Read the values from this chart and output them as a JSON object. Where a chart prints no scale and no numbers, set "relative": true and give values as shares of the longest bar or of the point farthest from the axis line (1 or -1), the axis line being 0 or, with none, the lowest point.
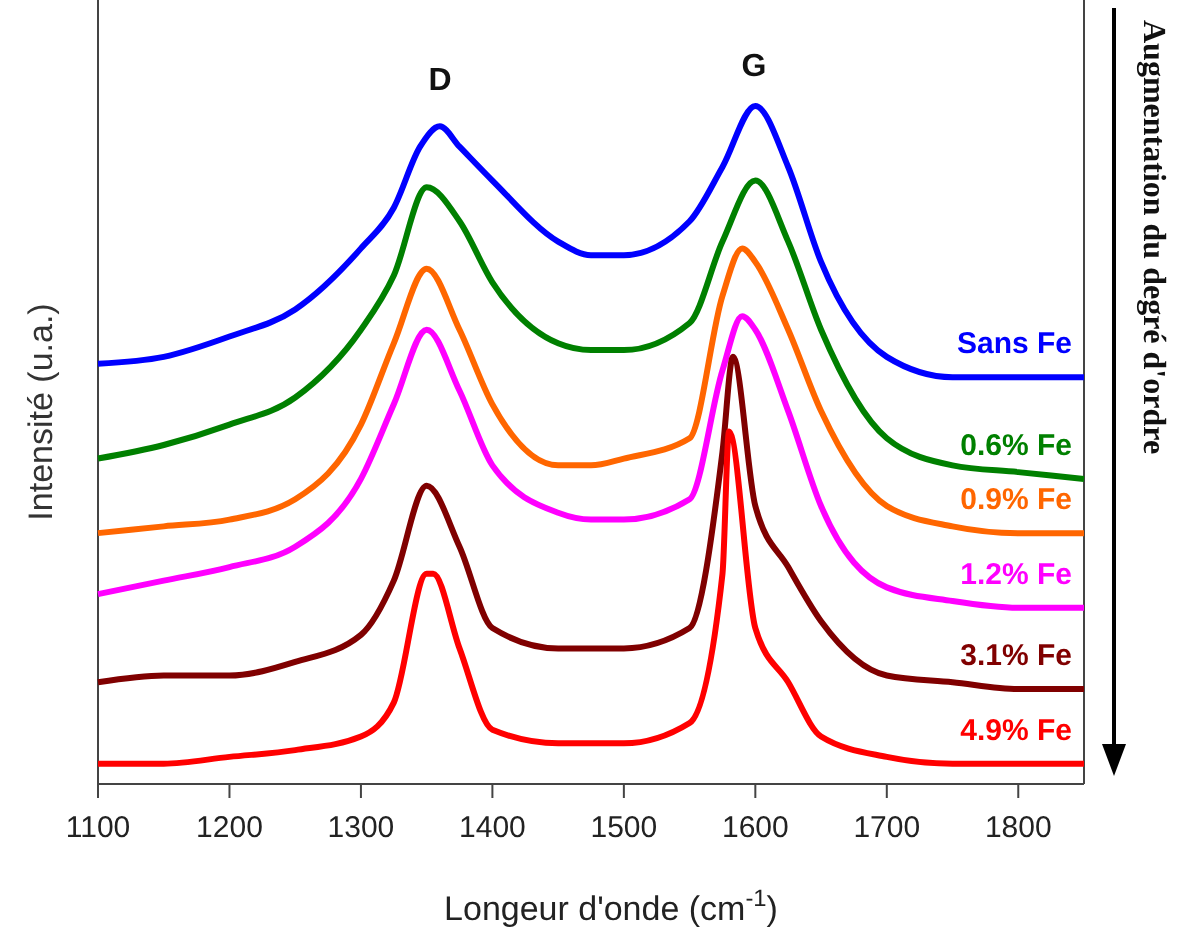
{
  "chart_data": {
    "type": "line",
    "relative": true,
    "xlabel": "Longeur d'onde (cm$^{-1}$)",
    "ylabel": "Intensité (u.a.)",
    "xlim": [
      1100,
      1850
    ],
    "xticks": [
      1100,
      1200,
      1300,
      1400,
      1500,
      1600,
      1700,
      1800
    ],
    "grid": false,
    "line_style": "solid",
    "marker": "none",
    "annotations": [
      "D",
      "G",
      "Augmentation du degré d'ordre"
    ],
    "series": [
      {
        "name": "Sans Fe",
        "color": "#0000ff",
        "x": [
          1100,
          1150,
          1200,
          1250,
          1300,
          1325,
          1345,
          1360,
          1375,
          1400,
          1450,
          1475,
          1500,
          1550,
          1575,
          1600,
          1625,
          1650,
          1700,
          1750,
          1800,
          1850
        ],
        "values": [
          0.62,
          0.63,
          0.66,
          0.7,
          0.79,
          0.85,
          0.94,
          0.97,
          0.94,
          0.89,
          0.8,
          0.78,
          0.78,
          0.83,
          0.91,
          1.0,
          0.91,
          0.77,
          0.63,
          0.6,
          0.6,
          0.6
        ]
      },
      {
        "name": "0.6% Fe",
        "color": "#008000",
        "x": [
          1100,
          1150,
          1200,
          1250,
          1300,
          1325,
          1350,
          1375,
          1400,
          1450,
          1475,
          1500,
          1550,
          1575,
          1600,
          1625,
          1650,
          1700,
          1750,
          1800,
          1850
        ],
        "values": [
          0.48,
          0.5,
          0.53,
          0.57,
          0.67,
          0.75,
          0.88,
          0.83,
          0.74,
          0.65,
          0.64,
          0.64,
          0.68,
          0.8,
          0.89,
          0.8,
          0.67,
          0.51,
          0.47,
          0.46,
          0.45
        ]
      },
      {
        "name": "0.9% Fe",
        "color": "#ff6600",
        "x": [
          1100,
          1150,
          1200,
          1250,
          1300,
          1325,
          1350,
          1375,
          1400,
          1450,
          1475,
          1500,
          1550,
          1575,
          1590,
          1600,
          1625,
          1650,
          1700,
          1750,
          1800,
          1850
        ],
        "values": [
          0.37,
          0.38,
          0.39,
          0.42,
          0.53,
          0.65,
          0.76,
          0.67,
          0.56,
          0.47,
          0.47,
          0.48,
          0.51,
          0.72,
          0.79,
          0.77,
          0.67,
          0.55,
          0.41,
          0.38,
          0.37,
          0.37
        ]
      },
      {
        "name": "1.2% Fe",
        "color": "#ff00ff",
        "x": [
          1100,
          1150,
          1200,
          1250,
          1300,
          1325,
          1350,
          1375,
          1400,
          1450,
          1475,
          1500,
          1550,
          1575,
          1590,
          1600,
          1625,
          1650,
          1700,
          1750,
          1800,
          1850
        ],
        "values": [
          0.28,
          0.3,
          0.32,
          0.35,
          0.45,
          0.56,
          0.67,
          0.58,
          0.47,
          0.4,
          0.39,
          0.39,
          0.42,
          0.61,
          0.69,
          0.67,
          0.55,
          0.41,
          0.29,
          0.27,
          0.26,
          0.26
        ]
      },
      {
        "name": "3.1% Fe",
        "color": "#800000",
        "x": [
          1100,
          1150,
          1200,
          1250,
          1300,
          1325,
          1350,
          1375,
          1400,
          1450,
          1475,
          1500,
          1550,
          1575,
          1583,
          1600,
          1625,
          1650,
          1700,
          1750,
          1800,
          1850
        ],
        "values": [
          0.15,
          0.16,
          0.16,
          0.18,
          0.22,
          0.3,
          0.44,
          0.35,
          0.23,
          0.2,
          0.2,
          0.2,
          0.23,
          0.49,
          0.63,
          0.41,
          0.32,
          0.24,
          0.16,
          0.15,
          0.14,
          0.14
        ]
      },
      {
        "name": "4.9% Fe",
        "color": "#ff0000",
        "x": [
          1100,
          1150,
          1200,
          1250,
          1300,
          1325,
          1350,
          1355,
          1375,
          1400,
          1450,
          1475,
          1500,
          1550,
          1575,
          1580,
          1600,
          1625,
          1650,
          1700,
          1750,
          1800,
          1850
        ],
        "values": [
          0.03,
          0.03,
          0.04,
          0.05,
          0.07,
          0.12,
          0.31,
          0.31,
          0.2,
          0.08,
          0.06,
          0.06,
          0.06,
          0.09,
          0.31,
          0.52,
          0.23,
          0.15,
          0.07,
          0.04,
          0.03,
          0.03,
          0.03
        ]
      }
    ]
  }
}
